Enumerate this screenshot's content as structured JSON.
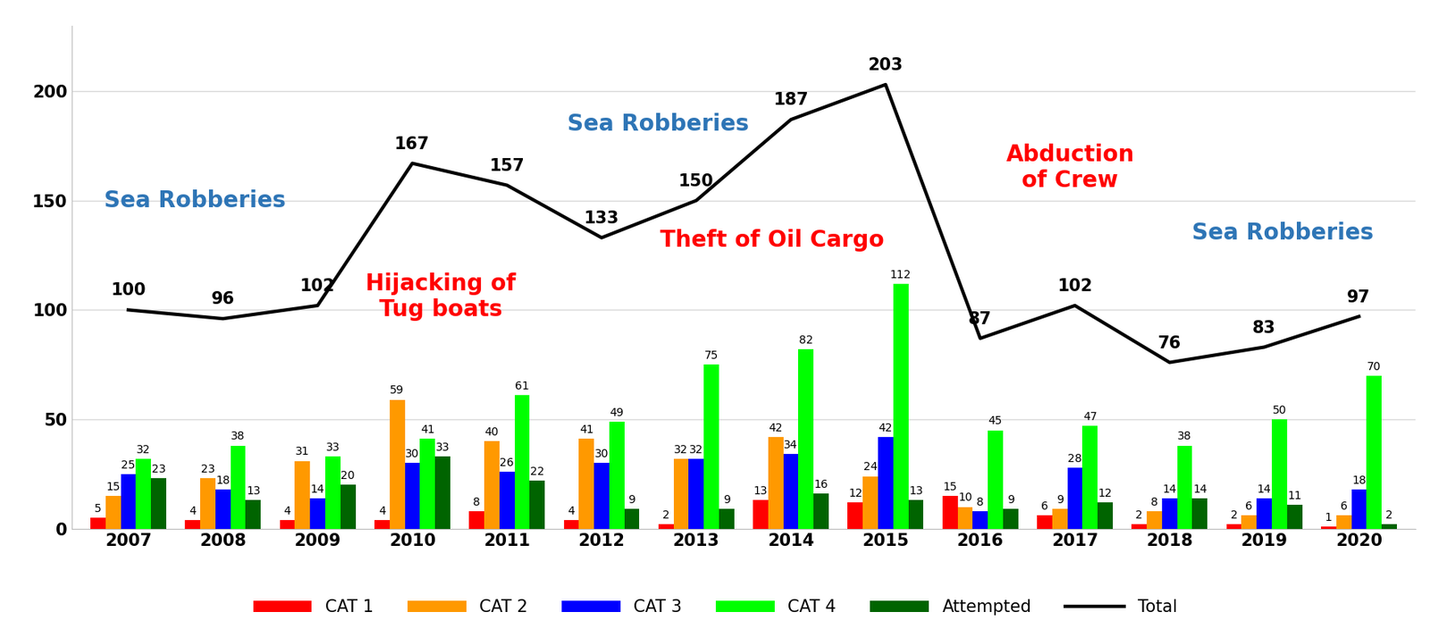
{
  "chart_data": {
    "type": "bar",
    "categories": [
      "2007",
      "2008",
      "2009",
      "2010",
      "2011",
      "2012",
      "2013",
      "2014",
      "2015",
      "2016",
      "2017",
      "2018",
      "2019",
      "2020"
    ],
    "series": [
      {
        "name": "CAT 1",
        "type": "bar",
        "color": "#FF0000",
        "values": [
          5,
          4,
          4,
          4,
          8,
          4,
          2,
          13,
          12,
          15,
          6,
          2,
          2,
          1
        ]
      },
      {
        "name": "CAT 2",
        "type": "bar",
        "color": "#FF9900",
        "values": [
          15,
          23,
          31,
          59,
          40,
          41,
          32,
          42,
          24,
          10,
          9,
          8,
          6,
          6
        ]
      },
      {
        "name": "CAT 3",
        "type": "bar",
        "color": "#0000FF",
        "values": [
          25,
          18,
          14,
          30,
          26,
          30,
          32,
          34,
          42,
          8,
          28,
          14,
          14,
          18
        ]
      },
      {
        "name": "CAT 4",
        "type": "bar",
        "color": "#00FF00",
        "values": [
          32,
          38,
          33,
          41,
          61,
          49,
          75,
          82,
          112,
          45,
          47,
          38,
          50,
          70
        ]
      },
      {
        "name": "Attempted",
        "type": "bar",
        "color": "#006400",
        "values": [
          23,
          13,
          20,
          33,
          22,
          9,
          9,
          16,
          13,
          9,
          12,
          14,
          11,
          2
        ]
      },
      {
        "name": "Total",
        "type": "line",
        "color": "#000000",
        "values": [
          100,
          96,
          102,
          167,
          157,
          133,
          150,
          187,
          203,
          87,
          102,
          76,
          83,
          97
        ]
      }
    ],
    "annotations": [
      {
        "text": "Sea Robberies",
        "color": "#2E75B6"
      },
      {
        "text": "Hijacking of\nTug boats",
        "color": "#FF0000"
      },
      {
        "text": "Sea Robberies",
        "color": "#2E75B6"
      },
      {
        "text": "Theft of Oil Cargo",
        "color": "#FF0000"
      },
      {
        "text": "Abduction\nof Crew",
        "color": "#FF0000"
      },
      {
        "text": "Sea Robberies",
        "color": "#2E75B6"
      }
    ],
    "ylim": [
      0,
      230
    ],
    "yticks": [
      0,
      50,
      100,
      150,
      200
    ],
    "grid": true,
    "legend": "lower center",
    "data_labels": true
  }
}
